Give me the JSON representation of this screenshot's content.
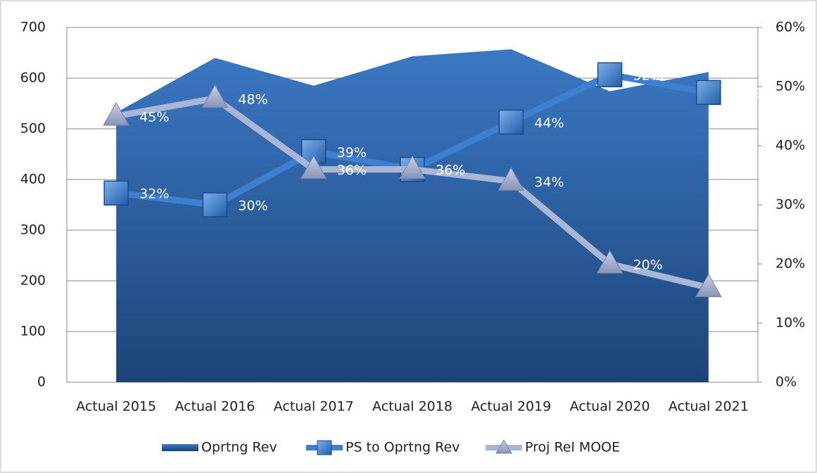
{
  "chart_data": {
    "type": "combo",
    "categories": [
      "Actual 2015",
      "Actual 2016",
      "Actual 2017",
      "Actual 2018",
      "Actual 2019",
      "Actual 2020",
      "Actual 2021"
    ],
    "series": [
      {
        "name": "Oprtng Rev",
        "type": "area",
        "color": "#2f64ad",
        "values": [
          532,
          640,
          585,
          643,
          657,
          574,
          612
        ]
      },
      {
        "name": "PS to Oprtng Rev",
        "type": "line",
        "marker": "square",
        "axis": "y2",
        "color": "#3f7fcf",
        "values": [
          32,
          30,
          39,
          36,
          44,
          52,
          49
        ],
        "value_labels": [
          "32%",
          "30%",
          "39%",
          "36%",
          "44%",
          "52%",
          "49%"
        ]
      },
      {
        "name": "Proj Rel MOOE",
        "type": "line",
        "marker": "triangle",
        "axis": "y2",
        "color": "#a9b6d6",
        "values": [
          45,
          48,
          36,
          36,
          34,
          20,
          16
        ],
        "value_labels": [
          "45%",
          "48%",
          "36%",
          "36%",
          "34%",
          "20%",
          null
        ]
      }
    ],
    "ylim": [
      0,
      700
    ],
    "yticks": [
      0,
      100,
      200,
      300,
      400,
      500,
      600,
      700
    ],
    "y2lim": [
      0,
      60
    ],
    "y2ticks": [
      {
        "value": 0,
        "label": "0%"
      },
      {
        "value": 10,
        "label": "10%"
      },
      {
        "value": 20,
        "label": "20%"
      },
      {
        "value": 30,
        "label": "30%"
      },
      {
        "value": 40,
        "label": "40%"
      },
      {
        "value": 50,
        "label": "50%"
      },
      {
        "value": 60,
        "label": "60%"
      }
    ],
    "grid": true,
    "legend": "bottom"
  }
}
